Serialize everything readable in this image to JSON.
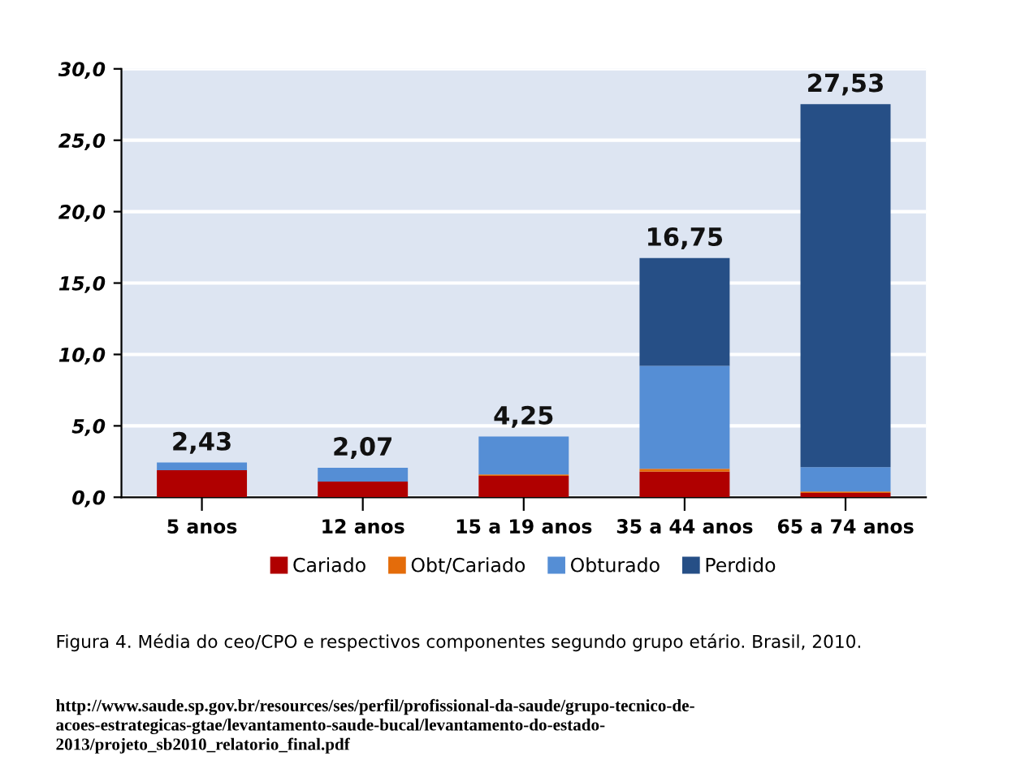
{
  "chart_data": {
    "type": "bar",
    "stacked": true,
    "categories": [
      "5 anos",
      "12 anos",
      "15 a 19 anos",
      "35 a 44 anos",
      "65 a 74 anos"
    ],
    "series": [
      {
        "name": "Cariado",
        "color": "#b00000",
        "values": [
          1.9,
          1.1,
          1.5,
          1.8,
          0.3
        ]
      },
      {
        "name": "Obt/Cariado",
        "color": "#e46c0a",
        "values": [
          null,
          null,
          0.1,
          0.2,
          0.1
        ]
      },
      {
        "name": "Obturado",
        "color": "#558ed5",
        "values": [
          0.53,
          0.97,
          2.65,
          7.2,
          1.7
        ]
      },
      {
        "name": "Perdido",
        "color": "#264f86",
        "values": [
          null,
          null,
          null,
          7.55,
          25.43
        ]
      }
    ],
    "totals": [
      "2,43",
      "2,07",
      "4,25",
      "16,75",
      "27,53"
    ],
    "ylim": [
      0,
      30
    ],
    "yticks": [
      {
        "value": 0,
        "label": "0,0"
      },
      {
        "value": 5,
        "label": "5,0"
      },
      {
        "value": 10,
        "label": "10,0"
      },
      {
        "value": 15,
        "label": "15,0"
      },
      {
        "value": 20,
        "label": "20,0"
      },
      {
        "value": 25,
        "label": "25,0"
      },
      {
        "value": 30,
        "label": "30,0"
      }
    ],
    "grid": "y",
    "legend": "bottom",
    "annotations": [
      "Figura 4. Média do ceo/CPO e respectivos componentes segundo grupo etário. Brasil, 2010.",
      "http://www.saude.sp.gov.br/resources/ses/perfil/profissional-da-saude/grupo-tecnico-de-\nacoes-estrategicas-gtae/levantamento-saude-bucal/levantamento-do-estado-\n2013/projeto_sb2010_relatorio_final.pdf"
    ]
  }
}
